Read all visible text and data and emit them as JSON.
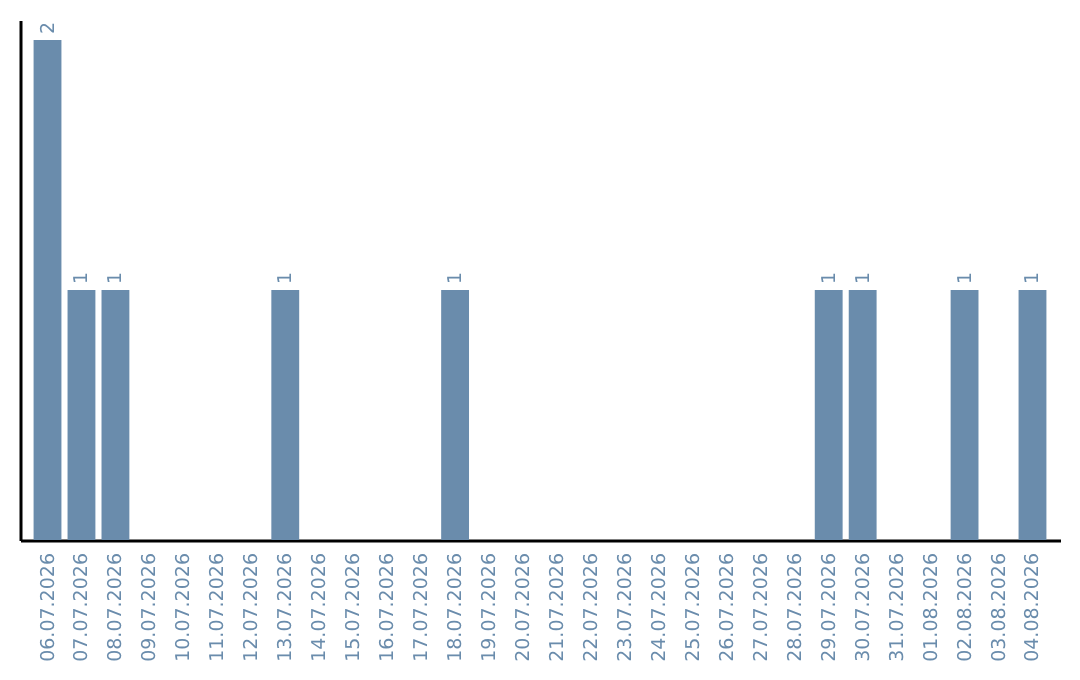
{
  "chart_data": {
    "type": "bar",
    "categories": [
      "06.07.2026",
      "07.07.2026",
      "08.07.2026",
      "09.07.2026",
      "10.07.2026",
      "11.07.2026",
      "12.07.2026",
      "13.07.2026",
      "14.07.2026",
      "15.07.2026",
      "16.07.2026",
      "17.07.2026",
      "18.07.2026",
      "19.07.2026",
      "20.07.2026",
      "21.07.2026",
      "22.07.2026",
      "23.07.2026",
      "24.07.2026",
      "25.07.2026",
      "26.07.2026",
      "27.07.2026",
      "28.07.2026",
      "29.07.2026",
      "30.07.2026",
      "31.07.2026",
      "01.08.2026",
      "02.08.2026",
      "03.08.2026",
      "04.08.2026"
    ],
    "values": [
      2,
      1,
      1,
      0,
      0,
      0,
      0,
      1,
      0,
      0,
      0,
      0,
      1,
      0,
      0,
      0,
      0,
      0,
      0,
      0,
      0,
      0,
      0,
      1,
      1,
      0,
      0,
      1,
      0,
      1
    ],
    "value_labels": [
      "2",
      "1",
      "1",
      null,
      null,
      null,
      null,
      "1",
      null,
      null,
      null,
      null,
      "1",
      null,
      null,
      null,
      null,
      null,
      null,
      null,
      null,
      null,
      null,
      "1",
      "1",
      null,
      null,
      "1",
      null,
      "1"
    ],
    "color": "#6a8cac",
    "grid": false,
    "tick_labels": "x"
  }
}
